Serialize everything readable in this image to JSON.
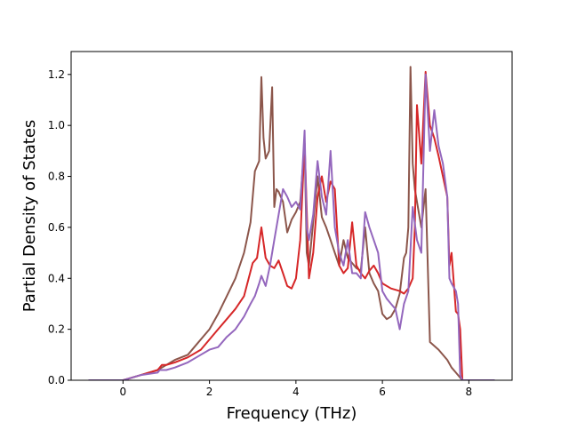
{
  "chart_data": {
    "type": "line",
    "xlabel": "Frequency (THz)",
    "ylabel": "Partial Density of States",
    "xlim": [
      -1.2,
      9.0
    ],
    "ylim": [
      0.0,
      1.29
    ],
    "xticks": [
      0,
      2,
      4,
      6,
      8
    ],
    "yticks": [
      0.0,
      0.2,
      0.4,
      0.6,
      0.8,
      1.0,
      1.2
    ],
    "legend": "none",
    "grid": false,
    "series": [
      {
        "color": "#8c564b",
        "x": [
          -0.8,
          0.0,
          0.4,
          0.8,
          1.0,
          1.2,
          1.5,
          1.7,
          2.0,
          2.2,
          2.4,
          2.6,
          2.8,
          2.95,
          3.05,
          3.15,
          3.2,
          3.25,
          3.3,
          3.38,
          3.45,
          3.5,
          3.55,
          3.6,
          3.7,
          3.8,
          3.9,
          4.0,
          4.1,
          4.2,
          4.25,
          4.3,
          4.4,
          4.5,
          4.6,
          4.7,
          4.8,
          4.9,
          5.0,
          5.1,
          5.2,
          5.3,
          5.4,
          5.5,
          5.6,
          5.7,
          5.8,
          5.9,
          6.0,
          6.1,
          6.2,
          6.3,
          6.4,
          6.5,
          6.55,
          6.6,
          6.65,
          6.7,
          6.75,
          6.8,
          6.9,
          7.0,
          7.1,
          7.3,
          7.5,
          7.6,
          7.7,
          7.8,
          7.85,
          8.0,
          8.6
        ],
        "y": [
          0.0,
          0.0,
          0.02,
          0.04,
          0.06,
          0.08,
          0.1,
          0.14,
          0.2,
          0.26,
          0.33,
          0.4,
          0.5,
          0.62,
          0.82,
          0.86,
          1.19,
          0.95,
          0.87,
          0.9,
          1.15,
          0.68,
          0.75,
          0.74,
          0.7,
          0.58,
          0.63,
          0.66,
          0.7,
          0.93,
          0.5,
          0.45,
          0.62,
          0.8,
          0.64,
          0.6,
          0.55,
          0.5,
          0.45,
          0.55,
          0.48,
          0.46,
          0.44,
          0.43,
          0.6,
          0.42,
          0.38,
          0.35,
          0.26,
          0.24,
          0.25,
          0.28,
          0.34,
          0.48,
          0.5,
          0.6,
          1.23,
          0.85,
          0.75,
          0.7,
          0.6,
          0.75,
          0.15,
          0.12,
          0.08,
          0.05,
          0.03,
          0.01,
          0.0,
          0.0,
          0.0
        ]
      },
      {
        "color": "#d62728",
        "x": [
          -0.8,
          0.0,
          0.4,
          0.8,
          0.85,
          0.9,
          1.0,
          1.2,
          1.5,
          1.8,
          2.0,
          2.2,
          2.4,
          2.6,
          2.8,
          3.0,
          3.1,
          3.2,
          3.3,
          3.4,
          3.5,
          3.6,
          3.7,
          3.8,
          3.9,
          4.0,
          4.1,
          4.2,
          4.3,
          4.35,
          4.4,
          4.5,
          4.6,
          4.7,
          4.8,
          4.9,
          5.0,
          5.1,
          5.2,
          5.3,
          5.4,
          5.5,
          5.6,
          5.7,
          5.8,
          5.9,
          6.0,
          6.2,
          6.4,
          6.5,
          6.6,
          6.7,
          6.75,
          6.8,
          6.9,
          7.0,
          7.1,
          7.2,
          7.3,
          7.4,
          7.5,
          7.55,
          7.6,
          7.7,
          7.75,
          7.8,
          7.85,
          8.0,
          8.6
        ],
        "y": [
          0.0,
          0.0,
          0.02,
          0.04,
          0.05,
          0.06,
          0.06,
          0.07,
          0.09,
          0.12,
          0.16,
          0.2,
          0.24,
          0.28,
          0.33,
          0.46,
          0.48,
          0.6,
          0.48,
          0.45,
          0.44,
          0.47,
          0.42,
          0.37,
          0.36,
          0.4,
          0.55,
          0.93,
          0.4,
          0.45,
          0.5,
          0.72,
          0.8,
          0.7,
          0.78,
          0.75,
          0.45,
          0.42,
          0.44,
          0.62,
          0.45,
          0.42,
          0.4,
          0.43,
          0.45,
          0.42,
          0.38,
          0.36,
          0.35,
          0.34,
          0.36,
          0.4,
          0.6,
          1.08,
          0.85,
          1.21,
          1.0,
          0.95,
          0.88,
          0.8,
          0.72,
          0.45,
          0.5,
          0.27,
          0.26,
          0.2,
          0.0,
          0.0,
          0.0
        ]
      },
      {
        "color": "#9467bd",
        "x": [
          -0.8,
          0.0,
          0.4,
          0.8,
          0.85,
          0.9,
          1.0,
          1.2,
          1.5,
          1.8,
          2.0,
          2.2,
          2.4,
          2.6,
          2.8,
          2.95,
          3.05,
          3.15,
          3.2,
          3.3,
          3.4,
          3.5,
          3.6,
          3.7,
          3.8,
          3.9,
          4.0,
          4.1,
          4.2,
          4.25,
          4.3,
          4.4,
          4.5,
          4.6,
          4.7,
          4.8,
          4.9,
          5.0,
          5.1,
          5.2,
          5.3,
          5.4,
          5.5,
          5.6,
          5.7,
          5.8,
          5.9,
          6.0,
          6.1,
          6.2,
          6.3,
          6.4,
          6.5,
          6.6,
          6.7,
          6.8,
          6.9,
          7.0,
          7.1,
          7.2,
          7.3,
          7.4,
          7.5,
          7.55,
          7.6,
          7.7,
          7.75,
          7.8,
          7.85,
          8.0,
          8.6
        ],
        "y": [
          0.0,
          0.0,
          0.02,
          0.03,
          0.04,
          0.04,
          0.04,
          0.05,
          0.07,
          0.1,
          0.12,
          0.13,
          0.17,
          0.2,
          0.25,
          0.3,
          0.33,
          0.38,
          0.41,
          0.37,
          0.45,
          0.55,
          0.65,
          0.75,
          0.72,
          0.68,
          0.7,
          0.67,
          0.98,
          0.6,
          0.55,
          0.65,
          0.86,
          0.72,
          0.65,
          0.9,
          0.6,
          0.5,
          0.45,
          0.55,
          0.42,
          0.42,
          0.4,
          0.66,
          0.6,
          0.55,
          0.5,
          0.35,
          0.32,
          0.3,
          0.28,
          0.2,
          0.3,
          0.35,
          0.68,
          0.55,
          0.5,
          1.2,
          0.9,
          1.06,
          0.92,
          0.85,
          0.72,
          0.4,
          0.38,
          0.35,
          0.3,
          0.02,
          0.0,
          0.0,
          0.0
        ]
      }
    ]
  }
}
